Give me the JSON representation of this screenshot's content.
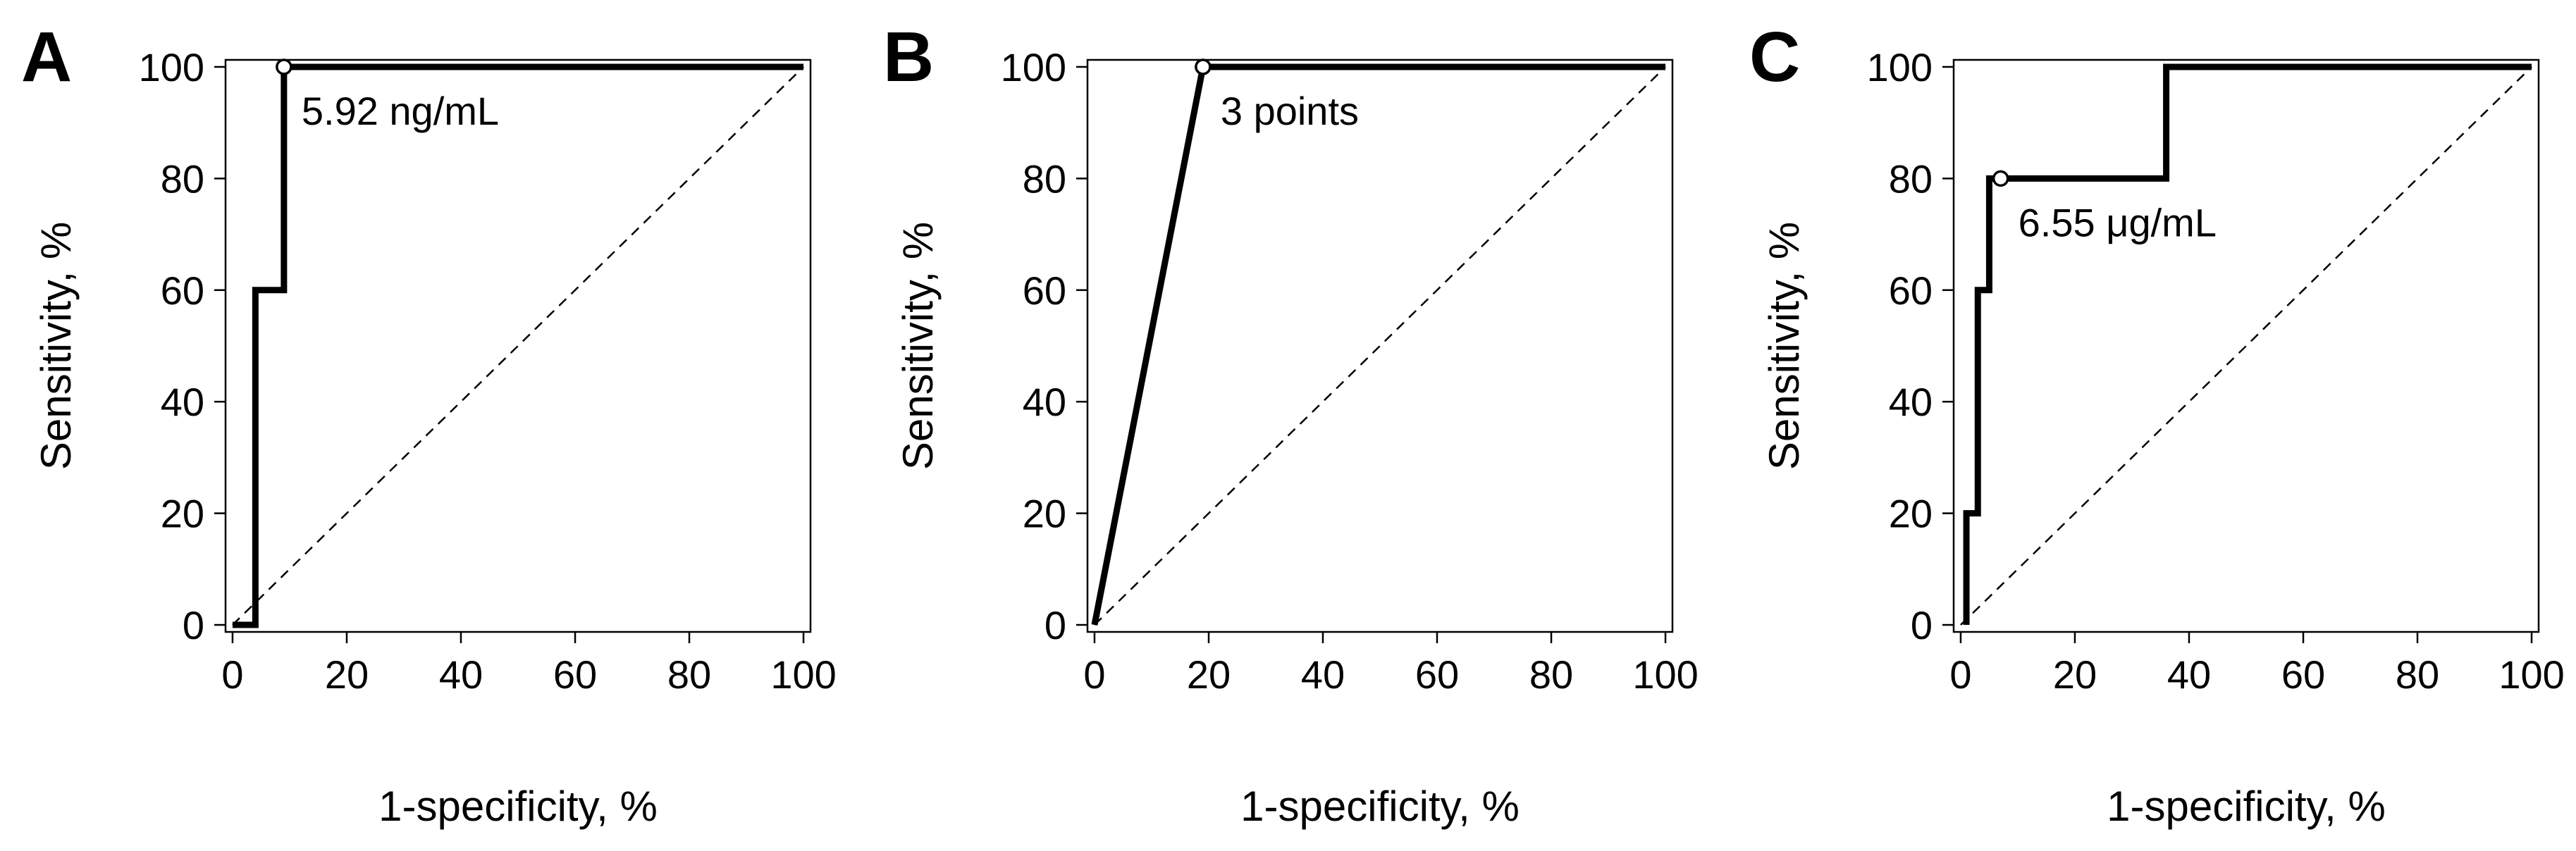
{
  "colors": {
    "background": "#ffffff",
    "roc_line": "#000000",
    "reference_line": "#000000"
  },
  "chart_data": [
    {
      "type": "line",
      "panel_label": "A",
      "xlabel": "1-specificity, %",
      "ylabel": "Sensitivity, %",
      "xlim": [
        0,
        100
      ],
      "ylim": [
        0,
        100
      ],
      "xticks": [
        "0",
        "20",
        "40",
        "60",
        "80",
        "100"
      ],
      "yticks": [
        "0",
        "20",
        "40",
        "60",
        "80",
        "100"
      ],
      "grid": false,
      "legend": "none",
      "series": [
        {
          "x": [
            0,
            4,
            4,
            4,
            9,
            9,
            100
          ],
          "y": [
            0,
            0,
            0,
            60,
            60,
            100,
            100
          ]
        }
      ],
      "reference_line": {
        "x": [
          0,
          100
        ],
        "y": [
          0,
          100
        ],
        "style": "dashed"
      },
      "cutoff_point": {
        "x": 9,
        "y": 100,
        "label": "5.92 ng/mL"
      }
    },
    {
      "type": "line",
      "panel_label": "B",
      "xlabel": "1-specificity, %",
      "ylabel": "Sensitivity, %",
      "xlim": [
        0,
        100
      ],
      "ylim": [
        0,
        100
      ],
      "xticks": [
        "0",
        "20",
        "40",
        "60",
        "80",
        "100"
      ],
      "yticks": [
        "0",
        "20",
        "40",
        "60",
        "80",
        "100"
      ],
      "grid": false,
      "legend": "none",
      "series": [
        {
          "x": [
            0,
            19,
            100
          ],
          "y": [
            0,
            100,
            100
          ]
        }
      ],
      "reference_line": {
        "x": [
          0,
          100
        ],
        "y": [
          0,
          100
        ],
        "style": "dashed"
      },
      "cutoff_point": {
        "x": 19,
        "y": 100,
        "label": "3 points"
      }
    },
    {
      "type": "line",
      "panel_label": "C",
      "xlabel": "1-specificity, %",
      "ylabel": "Sensitivity, %",
      "xlim": [
        0,
        100
      ],
      "ylim": [
        0,
        100
      ],
      "xticks": [
        "0",
        "20",
        "40",
        "60",
        "80",
        "100"
      ],
      "yticks": [
        "0",
        "20",
        "40",
        "60",
        "80",
        "100"
      ],
      "grid": false,
      "legend": "none",
      "series": [
        {
          "x": [
            1,
            1,
            3,
            3,
            5,
            5,
            7,
            7,
            36,
            36,
            100
          ],
          "y": [
            0,
            20,
            20,
            60,
            60,
            80,
            80,
            80,
            80,
            100,
            100
          ]
        }
      ],
      "reference_line": {
        "x": [
          0,
          100
        ],
        "y": [
          0,
          100
        ],
        "style": "dashed"
      },
      "cutoff_point": {
        "x": 7,
        "y": 80,
        "label": "6.55 μg/mL"
      }
    }
  ]
}
